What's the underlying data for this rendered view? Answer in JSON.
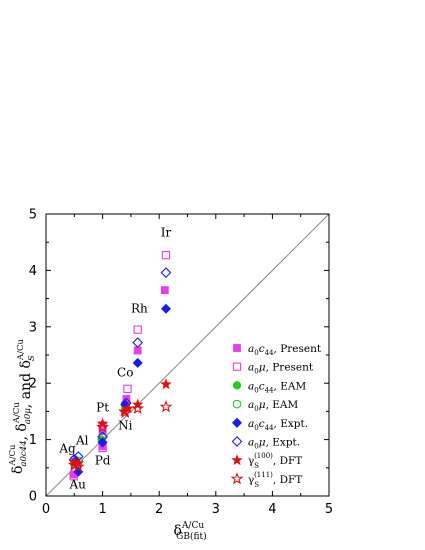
{
  "chart_data": {
    "type": "scatter",
    "xlim": [
      0,
      5
    ],
    "ylim": [
      0,
      5
    ],
    "x_ticks": [
      "0",
      "1",
      "2",
      "3",
      "4",
      "5"
    ],
    "y_ticks": [
      "0",
      "1",
      "2",
      "3",
      "4",
      "5"
    ],
    "xlabel": {
      "main": "δ",
      "sup": "A/Cu",
      "sub": "GB(fit)"
    },
    "ylabel": {
      "part1": {
        "main": "δ",
        "sup": "A/Cu",
        "sub": "a0c44"
      },
      "sep1": ",",
      "part2": {
        "main": "δ",
        "sup": "A/Cu",
        "sub": "a0μ"
      },
      "sep2": ", and",
      "part3": {
        "main": "δ",
        "sup": "A/Cu",
        "sub": "S"
      }
    },
    "reference_line": {
      "from": [
        0,
        0
      ],
      "to": [
        5,
        5
      ],
      "color": "#888888"
    },
    "legend_position": "right",
    "element_labels": [
      {
        "text": "Ir",
        "x": 2.12,
        "y": 4.6
      },
      {
        "text": "Rh",
        "x": 1.65,
        "y": 3.25
      },
      {
        "text": "Co",
        "x": 1.4,
        "y": 2.12
      },
      {
        "text": "Pt",
        "x": 1.0,
        "y": 1.5
      },
      {
        "text": "Ni",
        "x": 1.4,
        "y": 1.18
      },
      {
        "text": "Ag",
        "x": 0.38,
        "y": 0.77
      },
      {
        "text": "Al",
        "x": 0.64,
        "y": 0.91
      },
      {
        "text": "Pd",
        "x": 1.0,
        "y": 0.56
      },
      {
        "text": "Au",
        "x": 0.56,
        "y": 0.13
      }
    ],
    "series": [
      {
        "legend": {
          "var": "a0c44",
          "suffix": ", Present"
        },
        "marker": "square",
        "filled": true,
        "color": "#e83ce8",
        "points": [
          [
            2.1,
            3.65
          ],
          [
            1.62,
            2.58
          ],
          [
            1.42,
            1.72
          ],
          [
            1.0,
            1.15
          ],
          [
            1.0,
            0.88
          ],
          [
            0.49,
            0.38
          ],
          [
            0.51,
            0.56
          ],
          [
            1.4,
            1.6
          ]
        ]
      },
      {
        "legend": {
          "var": "a0μ",
          "suffix": ", Present"
        },
        "marker": "square",
        "filled": false,
        "color": "#e83ce8",
        "points": [
          [
            2.12,
            4.27
          ],
          [
            1.62,
            2.95
          ],
          [
            1.44,
            1.9
          ],
          [
            1.0,
            1.25
          ],
          [
            1.0,
            0.85
          ],
          [
            0.49,
            0.35
          ],
          [
            0.52,
            0.6
          ]
        ]
      },
      {
        "legend": {
          "var": "a0c44",
          "suffix": ", EAM"
        },
        "marker": "circle",
        "filled": true,
        "color": "#22cc22",
        "points": [
          [
            0.5,
            0.58
          ],
          [
            0.55,
            0.56
          ],
          [
            0.98,
            1.0
          ],
          [
            1.4,
            1.55
          ]
        ]
      },
      {
        "legend": {
          "var": "a0μ",
          "suffix": ", EAM"
        },
        "marker": "circle",
        "filled": false,
        "color": "#22cc22",
        "points": [
          [
            0.5,
            0.65
          ],
          [
            0.58,
            0.62
          ],
          [
            1.0,
            1.05
          ],
          [
            1.41,
            1.6
          ]
        ]
      },
      {
        "legend": {
          "var": "a0c44",
          "suffix": ", Expt."
        },
        "marker": "diamond",
        "filled": true,
        "color": "#1a1aee",
        "points": [
          [
            2.12,
            3.32
          ],
          [
            1.62,
            2.36
          ],
          [
            1.0,
            0.95
          ],
          [
            0.57,
            0.43
          ],
          [
            0.52,
            0.62
          ],
          [
            1.4,
            1.62
          ]
        ]
      },
      {
        "legend": {
          "var": "a0μ",
          "suffix": ", Expt."
        },
        "marker": "diamond",
        "filled": false,
        "color": "#1a1aee",
        "points": [
          [
            2.12,
            3.96
          ],
          [
            1.62,
            2.72
          ],
          [
            1.42,
            1.65
          ],
          [
            1.0,
            1.05
          ],
          [
            0.57,
            0.7
          ],
          [
            0.5,
            0.65
          ]
        ]
      },
      {
        "legend": {
          "var": "γS",
          "sup": "(100)",
          "suffix": ", DFT"
        },
        "marker": "star",
        "filled": true,
        "color": "#dd1111",
        "points": [
          [
            2.12,
            1.98
          ],
          [
            1.62,
            1.62
          ],
          [
            1.38,
            1.5
          ],
          [
            1.0,
            1.28
          ],
          [
            0.5,
            0.6
          ],
          [
            0.57,
            0.58
          ],
          [
            1.45,
            1.55
          ]
        ]
      },
      {
        "legend": {
          "var": "γS",
          "sup": "(111)",
          "suffix": ", DFT"
        },
        "marker": "star",
        "filled": false,
        "color": "#dd1111",
        "points": [
          [
            2.12,
            1.58
          ],
          [
            1.62,
            1.55
          ],
          [
            1.4,
            1.48
          ],
          [
            1.0,
            1.22
          ],
          [
            0.5,
            0.55
          ],
          [
            0.57,
            0.52
          ]
        ]
      }
    ]
  }
}
